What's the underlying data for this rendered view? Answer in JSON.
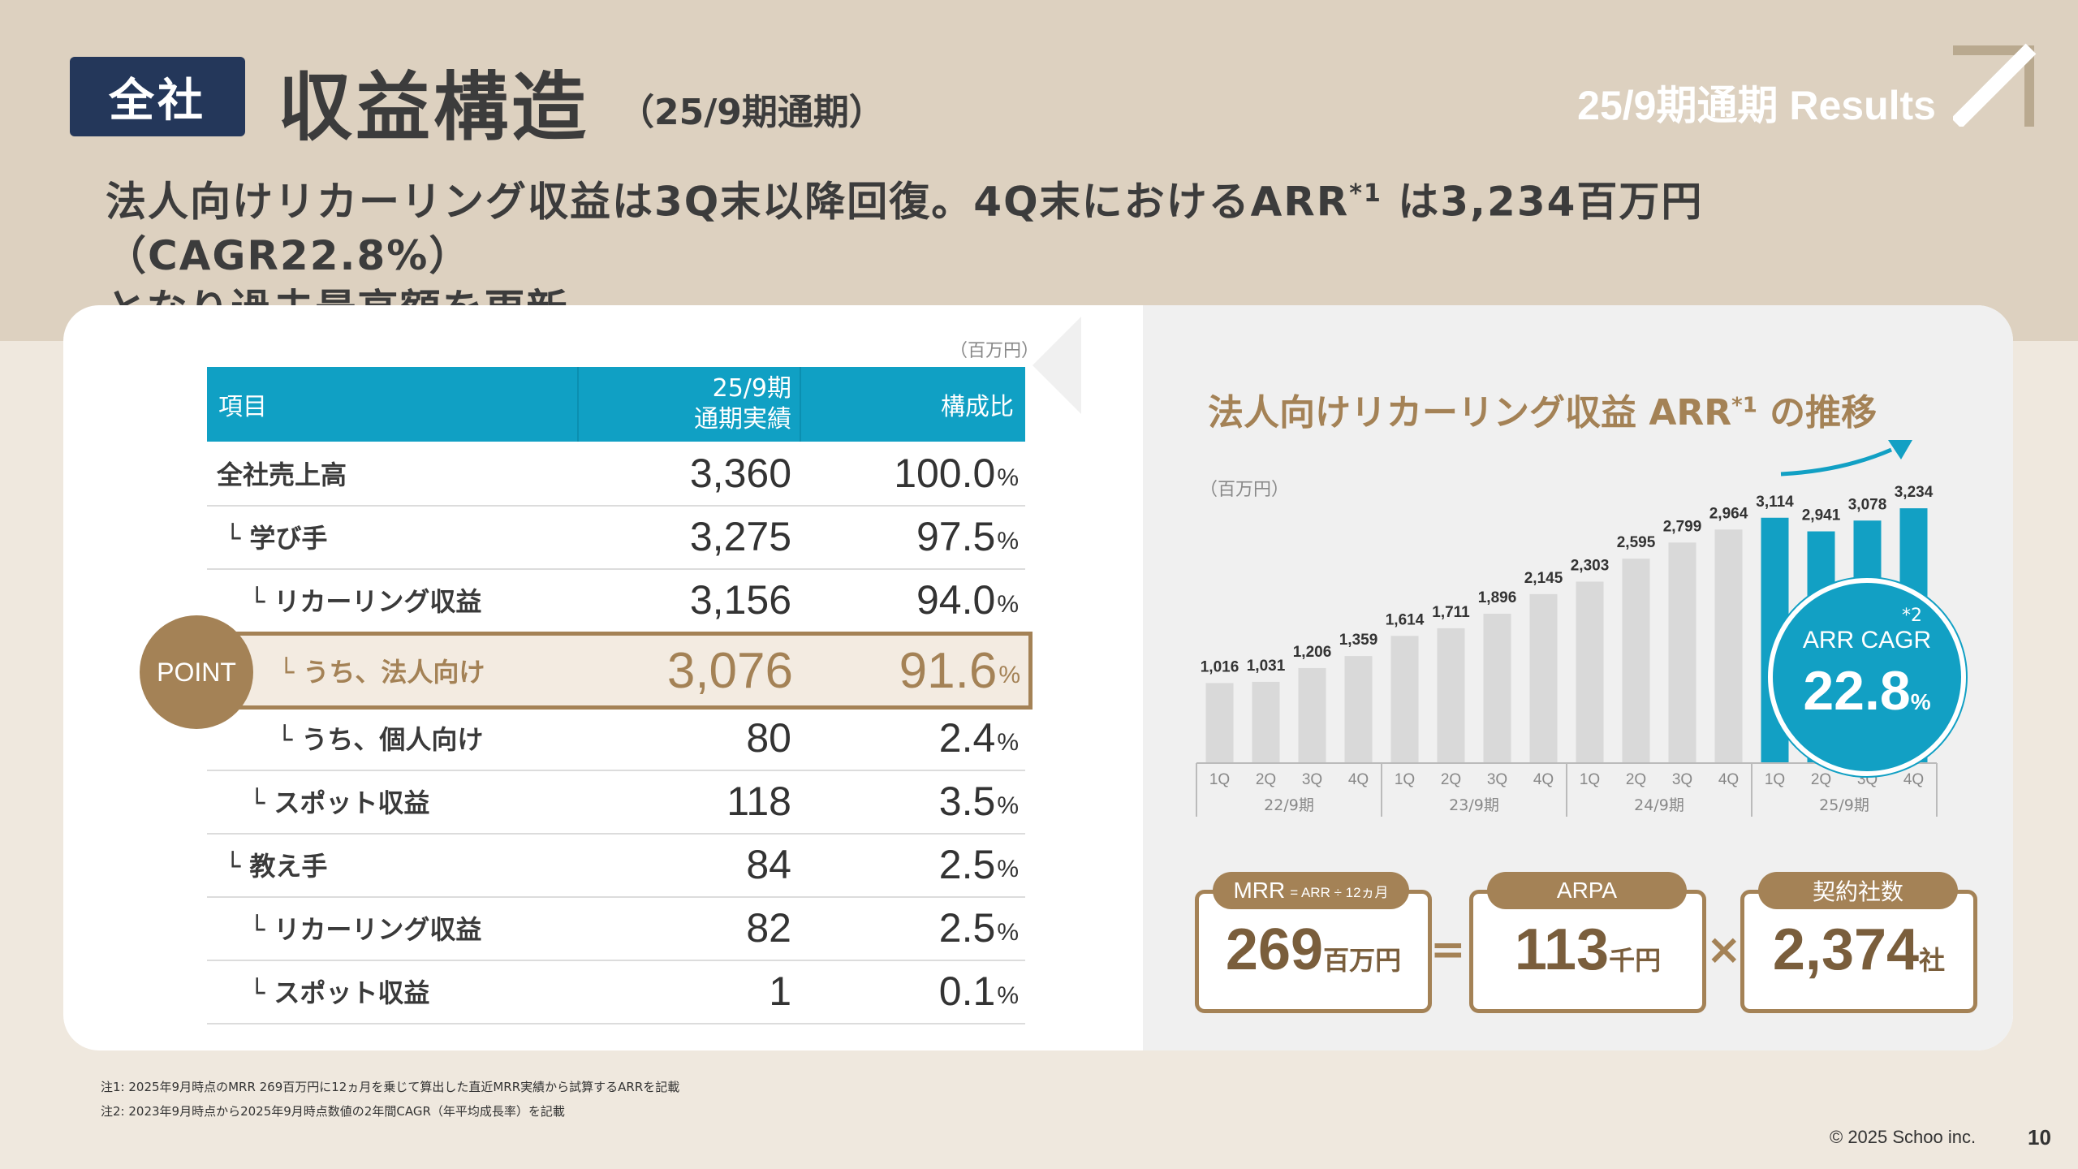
{
  "header": {
    "badge": "全社",
    "title": "収益構造",
    "subtitle": "（25/9期通期）",
    "results": "25/9期通期 Results"
  },
  "headline": {
    "line1_a": "法人向けリカーリング収益は3Q末以降回復。4Q末におけるARR",
    "line1_sup": "*1",
    "line1_b": " は3,234百万円（CAGR22.8%）",
    "line2": "となり過去最高額を更新。"
  },
  "table": {
    "unit": "（百万円）",
    "col_item": "項目",
    "col_period_1": "25/9期",
    "col_period_2": "通期実績",
    "col_ratio": "構成比",
    "pct_suffix": "%",
    "point_label": "POINT",
    "rows": [
      {
        "label": "全社売上高",
        "value": "3,360",
        "pct": "100.0"
      },
      {
        "label": "└ 学び手",
        "value": "3,275",
        "pct": "97.5"
      },
      {
        "label": "└ リカーリング収益",
        "value": "3,156",
        "pct": "94.0"
      },
      {
        "label": "└ うち、法人向け",
        "value": "3,076",
        "pct": "91.6"
      },
      {
        "label": "└ うち、個人向け",
        "value": "80",
        "pct": "2.4"
      },
      {
        "label": "└ スポット収益",
        "value": "118",
        "pct": "3.5"
      },
      {
        "label": "└ 教え手",
        "value": "84",
        "pct": "2.5"
      },
      {
        "label": "└ リカーリング収益",
        "value": "82",
        "pct": "2.5"
      },
      {
        "label": "└ スポット収益",
        "value": "1",
        "pct": "0.1"
      }
    ]
  },
  "chart_data": {
    "type": "bar",
    "title": "法人向けリカーリング収益 ARR*1 の推移",
    "unit": "（百万円）",
    "categories": [
      "1Q",
      "2Q",
      "3Q",
      "4Q",
      "1Q",
      "2Q",
      "3Q",
      "4Q",
      "1Q",
      "2Q",
      "3Q",
      "4Q",
      "1Q",
      "2Q",
      "3Q",
      "4Q"
    ],
    "groups": [
      "22/9期",
      "23/9期",
      "24/9期",
      "25/9期"
    ],
    "values": [
      1016,
      1031,
      1206,
      1359,
      1614,
      1711,
      1896,
      2145,
      2303,
      2595,
      2799,
      2964,
      3114,
      2941,
      3078,
      3234
    ],
    "value_labels": [
      "1,016",
      "1,031",
      "1,206",
      "1,359",
      "1,614",
      "1,711",
      "1,896",
      "2,145",
      "2,303",
      "2,595",
      "2,799",
      "2,964",
      "3,114",
      "2,941",
      "3,078",
      "3,234"
    ],
    "highlight_group": "25/9期",
    "colors": {
      "base": "#d9d9d9",
      "highlight": "#12a0c4"
    },
    "ylim": [
      0,
      3400
    ]
  },
  "cagr": {
    "label": "ARR CAGR",
    "star": "*2",
    "value": "22.8",
    "unit": "%"
  },
  "kpis": {
    "mrr_label": "MRR",
    "mrr_sub": "= ARR ÷ 12ヵ月",
    "mrr_value": "269",
    "mrr_unit": "百万円",
    "arpa_label": "ARPA",
    "arpa_value": "113",
    "arpa_unit": "千円",
    "contracts_label": "契約社数",
    "contracts_value": "2,374",
    "contracts_unit": "社",
    "op_equals": "=",
    "op_times": "×"
  },
  "notes": {
    "note1": "注1: 2025年9月時点のMRR 269百万円に12ヵ月を乗じて算出した直近MRR実績から試算するARRを記載",
    "note2": "注2: 2023年9月時点から2025年9月時点数値の2年間CAGR（年平均成長率）を記載"
  },
  "footer": {
    "copyright": "© 2025 Schoo inc.",
    "page": "10"
  }
}
